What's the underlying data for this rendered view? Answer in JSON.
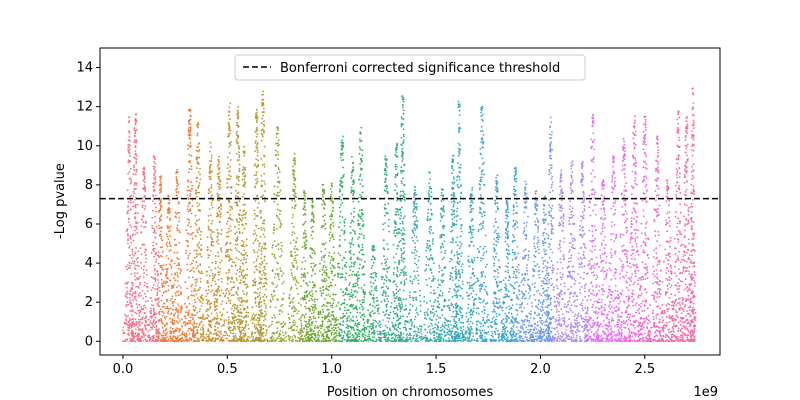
{
  "chart_data": {
    "type": "scatter",
    "title": "",
    "xlabel": "Position on chromosomes",
    "ylabel": "-Log pvalue",
    "x_offset_label": "1e9",
    "xlim": [
      -0.11,
      2.86
    ],
    "ylim": [
      -0.7,
      15
    ],
    "x_ticks": [
      0.0,
      0.5,
      1.0,
      1.5,
      2.0,
      2.5
    ],
    "x_tick_labels": [
      "0.0",
      "0.5",
      "1.0",
      "1.5",
      "2.0",
      "2.5"
    ],
    "y_ticks": [
      0,
      2,
      4,
      6,
      8,
      10,
      12,
      14
    ],
    "y_tick_labels": [
      "0",
      "2",
      "4",
      "6",
      "8",
      "10",
      "12",
      "14"
    ],
    "grid": false,
    "legend": {
      "position": "top-center",
      "entries": [
        {
          "label": "Bonferroni corrected significance threshold",
          "style": "dashed",
          "color": "#000000"
        }
      ]
    },
    "threshold": 7.3,
    "peaks": [
      {
        "x": 0.03,
        "y": 11.5
      },
      {
        "x": 0.06,
        "y": 11.7
      },
      {
        "x": 0.1,
        "y": 8.9
      },
      {
        "x": 0.15,
        "y": 9.5
      },
      {
        "x": 0.18,
        "y": 8.5
      },
      {
        "x": 0.22,
        "y": 7.5
      },
      {
        "x": 0.26,
        "y": 8.9
      },
      {
        "x": 0.32,
        "y": 12.0
      },
      {
        "x": 0.36,
        "y": 11.3
      },
      {
        "x": 0.42,
        "y": 10.2
      },
      {
        "x": 0.46,
        "y": 9.5
      },
      {
        "x": 0.51,
        "y": 12.2
      },
      {
        "x": 0.55,
        "y": 12.0
      },
      {
        "x": 0.58,
        "y": 10.0
      },
      {
        "x": 0.64,
        "y": 11.9
      },
      {
        "x": 0.67,
        "y": 12.8
      },
      {
        "x": 0.74,
        "y": 11.0
      },
      {
        "x": 0.82,
        "y": 9.6
      },
      {
        "x": 0.87,
        "y": 7.7
      },
      {
        "x": 0.91,
        "y": 7.4
      },
      {
        "x": 0.96,
        "y": 8.1
      },
      {
        "x": 1.0,
        "y": 8.1
      },
      {
        "x": 1.05,
        "y": 10.5
      },
      {
        "x": 1.1,
        "y": 9.5
      },
      {
        "x": 1.14,
        "y": 11.0
      },
      {
        "x": 1.2,
        "y": 5.0
      },
      {
        "x": 1.26,
        "y": 9.5
      },
      {
        "x": 1.31,
        "y": 10.2
      },
      {
        "x": 1.34,
        "y": 12.7
      },
      {
        "x": 1.4,
        "y": 8.0
      },
      {
        "x": 1.47,
        "y": 8.7
      },
      {
        "x": 1.53,
        "y": 7.8
      },
      {
        "x": 1.58,
        "y": 9.5
      },
      {
        "x": 1.61,
        "y": 12.4
      },
      {
        "x": 1.67,
        "y": 7.9
      },
      {
        "x": 1.72,
        "y": 12.0
      },
      {
        "x": 1.79,
        "y": 8.5
      },
      {
        "x": 1.84,
        "y": 7.2
      },
      {
        "x": 1.88,
        "y": 8.9
      },
      {
        "x": 1.93,
        "y": 8.3
      },
      {
        "x": 1.98,
        "y": 7.8
      },
      {
        "x": 2.02,
        "y": 7.5
      },
      {
        "x": 2.05,
        "y": 11.5
      },
      {
        "x": 2.1,
        "y": 8.8
      },
      {
        "x": 2.15,
        "y": 9.3
      },
      {
        "x": 2.2,
        "y": 9.2
      },
      {
        "x": 2.25,
        "y": 11.6
      },
      {
        "x": 2.3,
        "y": 8.3
      },
      {
        "x": 2.35,
        "y": 9.5
      },
      {
        "x": 2.4,
        "y": 10.4
      },
      {
        "x": 2.45,
        "y": 11.6
      },
      {
        "x": 2.5,
        "y": 11.5
      },
      {
        "x": 2.56,
        "y": 10.5
      },
      {
        "x": 2.61,
        "y": 8.3
      },
      {
        "x": 2.66,
        "y": 11.8
      },
      {
        "x": 2.7,
        "y": 11.5
      },
      {
        "x": 2.73,
        "y": 13.0
      }
    ],
    "chromosome_colors": [
      "#f77189",
      "#f37932",
      "#ce8f31",
      "#b39a32",
      "#97a431",
      "#6bac31",
      "#32b165",
      "#35ad8d",
      "#36aba5",
      "#37a8b9",
      "#3aa5d0",
      "#6e9bf4",
      "#ac88f4",
      "#e56ff4",
      "#f565cd",
      "#f66ba9"
    ]
  }
}
